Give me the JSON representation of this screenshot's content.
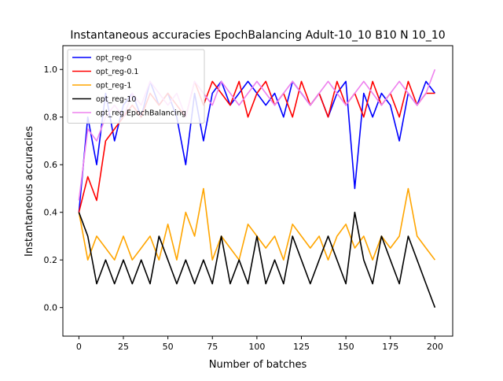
{
  "chart_data": {
    "type": "line",
    "title": "Instantaneous accuracies EpochBalancing Adult-10_10 B10 N 10_10",
    "xlabel": "Number of batches",
    "ylabel": "Instantaneous accuracies",
    "xlim": [
      -9,
      210
    ],
    "ylim": [
      -0.12,
      1.1
    ],
    "xticks": [
      0,
      25,
      50,
      75,
      100,
      125,
      150,
      175,
      200
    ],
    "yticks": [
      0.0,
      0.2,
      0.4,
      0.6,
      0.8,
      1.0
    ],
    "xtick_labels": [
      "0",
      "25",
      "50",
      "75",
      "100",
      "125",
      "150",
      "175",
      "200"
    ],
    "ytick_labels": [
      "0.0",
      "0.2",
      "0.4",
      "0.6",
      "0.8",
      "1.0"
    ],
    "grid": false,
    "legend_position": "top-left",
    "series": [
      {
        "name": "opt_reg-0",
        "color": "#0000ff",
        "x": [
          0,
          5,
          10,
          15,
          20,
          25,
          30,
          35,
          40,
          45,
          50,
          55,
          60,
          65,
          70,
          75,
          80,
          85,
          90,
          95,
          100,
          105,
          110,
          115,
          120,
          125,
          130,
          135,
          140,
          145,
          150,
          155,
          160,
          165,
          170,
          175,
          180,
          185,
          190,
          195,
          200
        ],
        "values": [
          0.4,
          0.8,
          0.6,
          0.9,
          0.7,
          0.85,
          0.9,
          0.8,
          0.95,
          0.85,
          0.9,
          0.8,
          0.6,
          0.9,
          0.7,
          0.9,
          0.95,
          0.85,
          0.9,
          0.95,
          0.9,
          0.85,
          0.9,
          0.8,
          0.95,
          0.9,
          0.85,
          0.9,
          0.8,
          0.9,
          0.95,
          0.5,
          0.9,
          0.8,
          0.9,
          0.85,
          0.7,
          0.9,
          0.85,
          0.95,
          0.9
        ]
      },
      {
        "name": "opt_reg-0.1",
        "color": "#ff0000",
        "x": [
          0,
          5,
          10,
          15,
          20,
          25,
          30,
          35,
          40,
          45,
          50,
          55,
          60,
          65,
          70,
          75,
          80,
          85,
          90,
          95,
          100,
          105,
          110,
          115,
          120,
          125,
          130,
          135,
          140,
          145,
          150,
          155,
          160,
          165,
          170,
          175,
          180,
          185,
          190,
          195,
          200
        ],
        "values": [
          0.4,
          0.55,
          0.45,
          0.7,
          0.75,
          0.8,
          0.85,
          0.8,
          0.9,
          0.85,
          0.9,
          0.85,
          0.8,
          0.95,
          0.85,
          0.95,
          0.9,
          0.85,
          0.95,
          0.8,
          0.9,
          0.95,
          0.85,
          0.9,
          0.8,
          0.95,
          0.85,
          0.9,
          0.8,
          0.95,
          0.85,
          0.9,
          0.8,
          0.95,
          0.85,
          0.9,
          0.8,
          0.95,
          0.85,
          0.9,
          0.9
        ]
      },
      {
        "name": "opt_reg-1",
        "color": "#ffa500",
        "x": [
          0,
          5,
          10,
          15,
          20,
          25,
          30,
          35,
          40,
          45,
          50,
          55,
          60,
          65,
          70,
          75,
          80,
          85,
          90,
          95,
          100,
          105,
          110,
          115,
          120,
          125,
          130,
          135,
          140,
          145,
          150,
          155,
          160,
          165,
          170,
          175,
          180,
          185,
          190,
          195,
          200
        ],
        "values": [
          0.4,
          0.2,
          0.3,
          0.25,
          0.2,
          0.3,
          0.2,
          0.25,
          0.3,
          0.2,
          0.35,
          0.2,
          0.4,
          0.3,
          0.5,
          0.2,
          0.3,
          0.25,
          0.2,
          0.35,
          0.3,
          0.25,
          0.3,
          0.2,
          0.35,
          0.3,
          0.25,
          0.3,
          0.2,
          0.3,
          0.35,
          0.25,
          0.3,
          0.2,
          0.3,
          0.25,
          0.3,
          0.5,
          0.3,
          0.25,
          0.2
        ]
      },
      {
        "name": "opt_reg-10",
        "color": "#000000",
        "x": [
          0,
          5,
          10,
          15,
          20,
          25,
          30,
          35,
          40,
          45,
          50,
          55,
          60,
          65,
          70,
          75,
          80,
          85,
          90,
          95,
          100,
          105,
          110,
          115,
          120,
          125,
          130,
          135,
          140,
          145,
          150,
          155,
          160,
          165,
          170,
          175,
          180,
          185,
          190,
          195,
          200
        ],
        "values": [
          0.4,
          0.3,
          0.1,
          0.2,
          0.1,
          0.2,
          0.1,
          0.2,
          0.1,
          0.3,
          0.2,
          0.1,
          0.2,
          0.1,
          0.2,
          0.1,
          0.3,
          0.1,
          0.2,
          0.1,
          0.3,
          0.1,
          0.2,
          0.1,
          0.3,
          0.2,
          0.1,
          0.2,
          0.3,
          0.2,
          0.1,
          0.4,
          0.2,
          0.1,
          0.3,
          0.2,
          0.1,
          0.3,
          0.2,
          0.1,
          0.0
        ]
      },
      {
        "name": "opt_reg EpochBalancing",
        "color": "#ee82ee",
        "x": [
          0,
          5,
          10,
          15,
          20,
          25,
          30,
          35,
          40,
          45,
          50,
          55,
          60,
          65,
          70,
          75,
          80,
          85,
          90,
          95,
          100,
          105,
          110,
          115,
          120,
          125,
          130,
          135,
          140,
          145,
          150,
          155,
          160,
          165,
          170,
          175,
          180,
          185,
          190,
          195,
          200
        ],
        "values": [
          0.45,
          0.75,
          0.7,
          0.8,
          0.85,
          0.8,
          0.9,
          0.85,
          0.95,
          0.9,
          0.85,
          0.9,
          0.8,
          0.95,
          0.9,
          0.85,
          0.95,
          0.9,
          0.85,
          0.9,
          0.95,
          0.9,
          0.85,
          0.9,
          0.95,
          0.9,
          0.85,
          0.9,
          0.95,
          0.9,
          0.85,
          0.9,
          0.95,
          0.9,
          0.85,
          0.9,
          0.95,
          0.9,
          0.85,
          0.9,
          1.0
        ]
      }
    ]
  }
}
